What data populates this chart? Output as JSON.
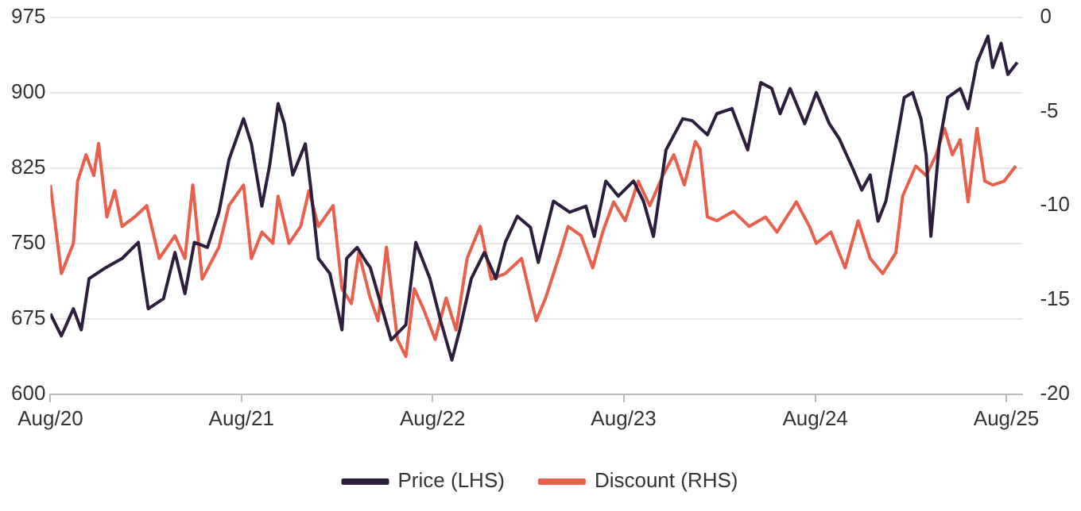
{
  "chart_data": {
    "type": "line",
    "x": [
      "2020-08-01",
      "2020-08-22",
      "2020-09-14",
      "2020-09-29",
      "2020-10-14",
      "2020-11-15",
      "2020-12-16",
      "2021-01-16",
      "2021-02-04",
      "2021-03-05",
      "2021-03-27",
      "2021-04-15",
      "2021-05-03",
      "2021-05-28",
      "2021-06-19",
      "2021-07-08",
      "2021-08-05",
      "2021-08-20",
      "2021-09-09",
      "2021-09-24",
      "2021-10-10",
      "2021-10-22",
      "2021-11-07",
      "2021-12-01",
      "2021-12-11",
      "2021-12-26",
      "2022-01-17",
      "2022-02-09",
      "2022-02-18",
      "2022-03-10",
      "2022-03-28",
      "2022-04-04",
      "2022-05-14",
      "2022-06-11",
      "2022-06-30",
      "2022-07-27",
      "2022-08-16",
      "2022-09-07",
      "2022-09-22",
      "2022-10-14",
      "2022-11-08",
      "2022-11-30",
      "2022-12-18",
      "2023-01-10",
      "2023-02-04",
      "2023-02-19",
      "2023-03-20",
      "2023-04-20",
      "2023-05-21",
      "2023-06-06",
      "2023-06-28",
      "2023-07-22",
      "2023-08-20",
      "2023-09-08",
      "2023-09-27",
      "2023-10-21",
      "2023-11-22",
      "2023-12-10",
      "2024-01-08",
      "2024-01-26",
      "2024-02-24",
      "2024-03-25",
      "2024-04-19",
      "2024-05-10",
      "2024-05-26",
      "2024-06-14",
      "2024-07-12",
      "2024-08-03",
      "2024-08-28",
      "2024-09-16",
      "2024-10-13",
      "2024-10-29",
      "2024-11-14",
      "2024-11-29",
      "2024-12-14",
      "2024-12-30",
      "2025-01-18",
      "2025-02-03",
      "2025-02-19",
      "2025-03-01",
      "2025-03-10",
      "2025-03-26",
      "2025-04-11",
      "2025-05-05",
      "2025-05-20",
      "2025-06-06",
      "2025-06-27",
      "2025-07-06",
      "2025-07-22",
      "2025-08-04",
      "2025-08-22"
    ],
    "series": [
      {
        "name": "Price (LHS)",
        "color": "#2d1e3e",
        "values": [
          680,
          658,
          685,
          664,
          715,
          726,
          735,
          751,
          685,
          695,
          741,
          700,
          751,
          746,
          781,
          833,
          874,
          849,
          787,
          828,
          889,
          869,
          818,
          849,
          807,
          735,
          720,
          664,
          735,
          746,
          731,
          726,
          654,
          669,
          751,
          715,
          674,
          634,
          664,
          715,
          741,
          715,
          751,
          777,
          766,
          731,
          792,
          781,
          787,
          757,
          812,
          797,
          812,
          792,
          757,
          843,
          874,
          872,
          858,
          879,
          884,
          843,
          910,
          904,
          879,
          904,
          869,
          900,
          869,
          854,
          823,
          803,
          818,
          772,
          792,
          838,
          895,
          900,
          874,
          838,
          757,
          849,
          895,
          904,
          884,
          930,
          956,
          925,
          949,
          918,
          930
        ]
      },
      {
        "name": "Discount (RHS)",
        "color": "#e8604c",
        "axis": "y2",
        "x": [
          "2020-08-01",
          "2020-08-22",
          "2020-09-14",
          "2020-09-22",
          "2020-10-08",
          "2020-10-23",
          "2020-11-01",
          "2020-11-17",
          "2020-12-02",
          "2020-12-16",
          "2021-01-09",
          "2021-02-01",
          "2021-02-25",
          "2021-03-27",
          "2021-04-15",
          "2021-04-30",
          "2021-05-18",
          "2021-06-19",
          "2021-07-08",
          "2021-08-05",
          "2021-08-20",
          "2021-09-09",
          "2021-09-30",
          "2021-10-10",
          "2021-10-31",
          "2021-11-22",
          "2021-12-08",
          "2021-12-26",
          "2022-01-23",
          "2022-02-09",
          "2022-02-27",
          "2022-03-13",
          "2022-04-04",
          "2022-04-19",
          "2022-05-05",
          "2022-05-26",
          "2022-06-11",
          "2022-06-27",
          "2022-07-15",
          "2022-08-06",
          "2022-08-27",
          "2022-09-15",
          "2022-10-06",
          "2022-10-31",
          "2022-11-21",
          "2022-12-18",
          "2023-01-18",
          "2023-02-15",
          "2023-03-05",
          "2023-04-02",
          "2023-04-17",
          "2023-05-12",
          "2023-06-03",
          "2023-06-22",
          "2023-07-13",
          "2023-08-04",
          "2023-08-29",
          "2023-09-20",
          "2023-10-15",
          "2023-11-05",
          "2023-11-25",
          "2023-12-16",
          "2023-12-25",
          "2024-01-08",
          "2024-01-26",
          "2024-02-27",
          "2024-03-28",
          "2024-04-28",
          "2024-05-20",
          "2024-06-26",
          "2024-07-21",
          "2024-08-03",
          "2024-08-31",
          "2024-09-27",
          "2024-10-22",
          "2024-11-14",
          "2024-12-08",
          "2025-01-02",
          "2025-01-15",
          "2025-02-09",
          "2025-03-01",
          "2025-03-20",
          "2025-04-05",
          "2025-04-20",
          "2025-05-05",
          "2025-05-20",
          "2025-06-06",
          "2025-06-21",
          "2025-07-06",
          "2025-07-28",
          "2025-08-19"
        ],
        "values": [
          -8.9,
          -13.6,
          -12.0,
          -8.7,
          -7.3,
          -8.4,
          -6.7,
          -10.6,
          -9.2,
          -11.1,
          -10.6,
          -10.0,
          -12.8,
          -11.6,
          -12.8,
          -8.9,
          -13.9,
          -12.2,
          -10.0,
          -8.9,
          -12.8,
          -11.4,
          -12.0,
          -9.5,
          -12.0,
          -11.1,
          -9.2,
          -11.1,
          -10.0,
          -14.4,
          -15.2,
          -12.5,
          -14.9,
          -16.1,
          -12.2,
          -17.1,
          -18.0,
          -14.4,
          -15.5,
          -17.1,
          -14.9,
          -16.6,
          -12.8,
          -11.1,
          -13.9,
          -13.6,
          -12.8,
          -16.1,
          -14.9,
          -12.5,
          -11.1,
          -11.6,
          -13.3,
          -11.4,
          -9.8,
          -10.8,
          -8.7,
          -10.0,
          -8.4,
          -7.3,
          -8.9,
          -6.6,
          -7.0,
          -10.6,
          -10.8,
          -10.3,
          -11.1,
          -10.6,
          -11.4,
          -9.8,
          -11.1,
          -12.0,
          -11.4,
          -13.3,
          -10.8,
          -12.8,
          -13.6,
          -12.5,
          -9.5,
          -7.9,
          -8.4,
          -7.3,
          -5.9,
          -7.3,
          -6.5,
          -9.8,
          -5.9,
          -8.7,
          -8.9,
          -8.7,
          -7.9
        ]
      }
    ],
    "xlim": [
      "2020-08-01",
      "2025-09-01"
    ],
    "xticks": [
      {
        "value": "2020-08-01",
        "label": "Aug/20"
      },
      {
        "value": "2021-08-01",
        "label": "Aug/21"
      },
      {
        "value": "2022-08-01",
        "label": "Aug/22"
      },
      {
        "value": "2023-08-01",
        "label": "Aug/23"
      },
      {
        "value": "2024-08-01",
        "label": "Aug/24"
      },
      {
        "value": "2025-08-01",
        "label": "Aug/25"
      }
    ],
    "ylim": [
      600,
      975
    ],
    "yticks": [
      600,
      675,
      750,
      825,
      900,
      975
    ],
    "y2lim": [
      -20,
      0
    ],
    "y2ticks": [
      -20,
      -15,
      -10,
      -5,
      0
    ],
    "grid": "y",
    "legend": "bottom",
    "marker": "none",
    "line_style": "solid"
  }
}
